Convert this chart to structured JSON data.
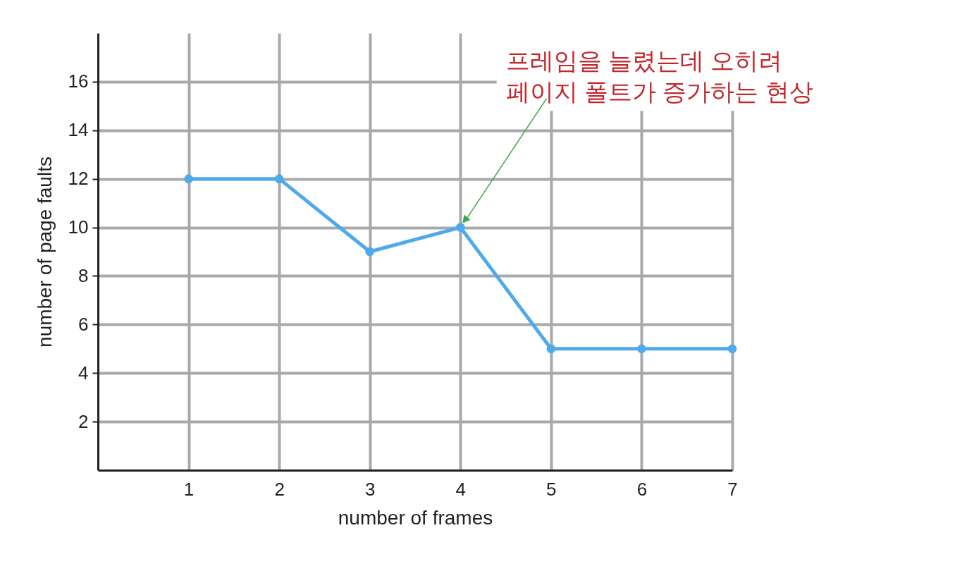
{
  "chart_data": {
    "type": "line",
    "xlabel": "number of frames",
    "ylabel": "number of page faults",
    "x": [
      1,
      2,
      3,
      4,
      5,
      6,
      7
    ],
    "series": [
      {
        "color": "#4eaaea",
        "values": [
          12,
          12,
          9,
          10,
          5,
          5,
          5
        ]
      }
    ],
    "xlim": [
      0,
      7
    ],
    "xticks": [
      1,
      2,
      3,
      4,
      5,
      6,
      7
    ],
    "ylim": [
      0,
      18
    ],
    "yticks": [
      2,
      4,
      6,
      8,
      10,
      12,
      14,
      16
    ],
    "grid": true,
    "marker": "circle",
    "line_style": "solid",
    "annotations": [
      {
        "text": "프레임을 늘렸는데 오히려\n페이지 폴트가 증가하는 현상",
        "x": 4,
        "y": 10
      }
    ]
  }
}
